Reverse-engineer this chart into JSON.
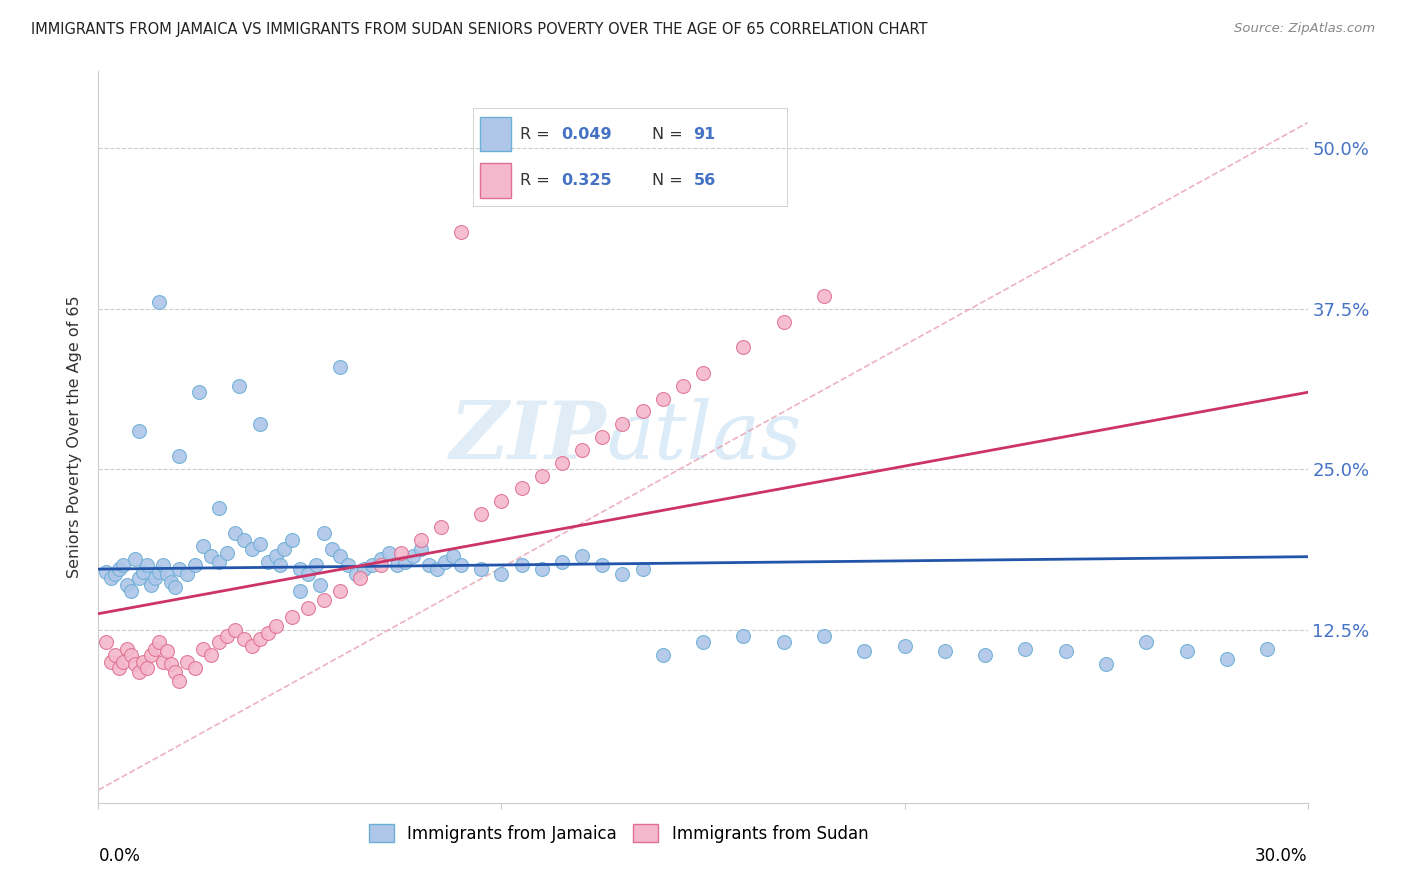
{
  "title": "IMMIGRANTS FROM JAMAICA VS IMMIGRANTS FROM SUDAN SENIORS POVERTY OVER THE AGE OF 65 CORRELATION CHART",
  "source": "Source: ZipAtlas.com",
  "ylabel": "Seniors Poverty Over the Age of 65",
  "ytick_labels": [
    "12.5%",
    "25.0%",
    "37.5%",
    "50.0%"
  ],
  "ytick_values": [
    0.125,
    0.25,
    0.375,
    0.5
  ],
  "xlim": [
    0.0,
    0.3
  ],
  "ylim": [
    -0.01,
    0.56
  ],
  "jamaica_color": "#aec6e8",
  "jamaica_edge": "#6baed6",
  "sudan_color": "#f4b8cc",
  "sudan_edge": "#e07090",
  "jamaica_R": 0.049,
  "jamaica_N": 91,
  "sudan_R": 0.325,
  "sudan_N": 56,
  "legend_label_jamaica": "Immigrants from Jamaica",
  "legend_label_sudan": "Immigrants from Sudan",
  "watermark_zip": "ZIP",
  "watermark_atlas": "atlas",
  "background_color": "#ffffff",
  "grid_color": "#cccccc",
  "title_color": "#222222",
  "axis_label_color": "#333333",
  "right_tick_color": "#4472c4",
  "legend_r_color": "#4472c4",
  "jamaica_line_color": "#2255aa",
  "sudan_line_color": "#cc3366",
  "dash_line_color": "#e8a0b0",
  "jamaica_scatter_x": [
    0.002,
    0.003,
    0.004,
    0.005,
    0.006,
    0.007,
    0.008,
    0.009,
    0.01,
    0.011,
    0.012,
    0.013,
    0.014,
    0.015,
    0.016,
    0.017,
    0.018,
    0.019,
    0.02,
    0.022,
    0.024,
    0.026,
    0.028,
    0.03,
    0.032,
    0.034,
    0.036,
    0.038,
    0.04,
    0.042,
    0.044,
    0.046,
    0.048,
    0.05,
    0.052,
    0.054,
    0.056,
    0.058,
    0.06,
    0.062,
    0.064,
    0.066,
    0.068,
    0.07,
    0.072,
    0.074,
    0.076,
    0.078,
    0.08,
    0.082,
    0.084,
    0.086,
    0.088,
    0.09,
    0.095,
    0.1,
    0.105,
    0.11,
    0.115,
    0.12,
    0.125,
    0.13,
    0.135,
    0.14,
    0.15,
    0.16,
    0.17,
    0.18,
    0.19,
    0.2,
    0.21,
    0.22,
    0.23,
    0.24,
    0.25,
    0.26,
    0.27,
    0.28,
    0.29,
    0.01,
    0.015,
    0.02,
    0.025,
    0.03,
    0.035,
    0.04,
    0.045,
    0.05,
    0.055,
    0.06
  ],
  "jamaica_scatter_y": [
    0.17,
    0.165,
    0.168,
    0.172,
    0.175,
    0.16,
    0.155,
    0.18,
    0.165,
    0.17,
    0.175,
    0.16,
    0.165,
    0.17,
    0.175,
    0.168,
    0.162,
    0.158,
    0.172,
    0.168,
    0.175,
    0.19,
    0.182,
    0.178,
    0.185,
    0.2,
    0.195,
    0.188,
    0.192,
    0.178,
    0.182,
    0.188,
    0.195,
    0.172,
    0.168,
    0.175,
    0.2,
    0.188,
    0.182,
    0.175,
    0.168,
    0.172,
    0.175,
    0.18,
    0.185,
    0.175,
    0.178,
    0.182,
    0.188,
    0.175,
    0.172,
    0.178,
    0.182,
    0.175,
    0.172,
    0.168,
    0.175,
    0.172,
    0.178,
    0.182,
    0.175,
    0.168,
    0.172,
    0.105,
    0.115,
    0.12,
    0.115,
    0.12,
    0.108,
    0.112,
    0.108,
    0.105,
    0.11,
    0.108,
    0.098,
    0.115,
    0.108,
    0.102,
    0.11,
    0.28,
    0.38,
    0.26,
    0.31,
    0.22,
    0.315,
    0.285,
    0.175,
    0.155,
    0.16,
    0.33
  ],
  "sudan_scatter_x": [
    0.002,
    0.003,
    0.004,
    0.005,
    0.006,
    0.007,
    0.008,
    0.009,
    0.01,
    0.011,
    0.012,
    0.013,
    0.014,
    0.015,
    0.016,
    0.017,
    0.018,
    0.019,
    0.02,
    0.022,
    0.024,
    0.026,
    0.028,
    0.03,
    0.032,
    0.034,
    0.036,
    0.038,
    0.04,
    0.042,
    0.044,
    0.048,
    0.052,
    0.056,
    0.06,
    0.065,
    0.07,
    0.075,
    0.08,
    0.085,
    0.09,
    0.095,
    0.1,
    0.105,
    0.11,
    0.115,
    0.12,
    0.125,
    0.13,
    0.135,
    0.14,
    0.145,
    0.15,
    0.16,
    0.17,
    0.18
  ],
  "sudan_scatter_y": [
    0.115,
    0.1,
    0.105,
    0.095,
    0.1,
    0.11,
    0.105,
    0.098,
    0.092,
    0.1,
    0.095,
    0.105,
    0.11,
    0.115,
    0.1,
    0.108,
    0.098,
    0.092,
    0.085,
    0.1,
    0.095,
    0.11,
    0.105,
    0.115,
    0.12,
    0.125,
    0.118,
    0.112,
    0.118,
    0.122,
    0.128,
    0.135,
    0.142,
    0.148,
    0.155,
    0.165,
    0.175,
    0.185,
    0.195,
    0.205,
    0.435,
    0.215,
    0.225,
    0.235,
    0.245,
    0.255,
    0.265,
    0.275,
    0.285,
    0.295,
    0.305,
    0.315,
    0.325,
    0.345,
    0.365,
    0.385
  ]
}
